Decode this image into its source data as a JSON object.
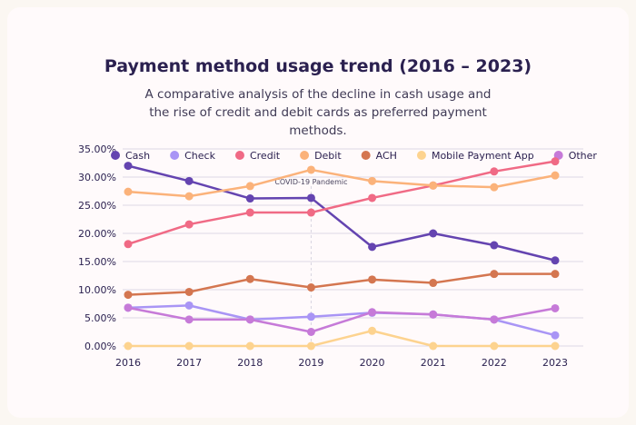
{
  "title": "Payment method usage trend (2016 – 2023)",
  "subtitle": "A comparative analysis of the decline in cash usage and the rise of credit and debit cards as preferred payment methods.",
  "chart_data": {
    "type": "line",
    "x": [
      "2016",
      "2017",
      "2018",
      "2019",
      "2020",
      "2021",
      "2022",
      "2023"
    ],
    "ylim": [
      0,
      35
    ],
    "yticks": [
      "0.00%",
      "5.00%",
      "10.00%",
      "15.00%",
      "20.00%",
      "25.00%",
      "30.00%",
      "35.00%"
    ],
    "grid": true,
    "legend": "top",
    "annotation": {
      "x": "2019",
      "label": "COVID-19 Pandemic"
    },
    "series": [
      {
        "name": "Cash",
        "color": "#6444b0",
        "values": [
          32.0,
          29.3,
          26.2,
          26.3,
          17.6,
          20.0,
          17.9,
          15.2
        ]
      },
      {
        "name": "Check",
        "color": "#a995f5",
        "values": [
          6.8,
          7.2,
          4.7,
          5.2,
          5.9,
          5.6,
          4.7,
          1.9
        ]
      },
      {
        "name": "Credit",
        "color": "#f06a85",
        "values": [
          18.1,
          21.6,
          23.7,
          23.7,
          26.3,
          28.5,
          31.0,
          32.8
        ]
      },
      {
        "name": "Debit",
        "color": "#fbb27a",
        "values": [
          27.4,
          26.6,
          28.4,
          31.3,
          29.3,
          28.5,
          28.2,
          30.3
        ]
      },
      {
        "name": "ACH",
        "color": "#d47650",
        "values": [
          9.1,
          9.6,
          11.9,
          10.4,
          11.8,
          11.2,
          12.8,
          12.8
        ]
      },
      {
        "name": "Mobile Payment App",
        "color": "#fdd38f",
        "values": [
          0,
          0,
          0,
          0,
          2.7,
          0,
          0,
          0
        ]
      },
      {
        "name": "Other",
        "color": "#c67ad8",
        "values": [
          6.8,
          4.7,
          4.7,
          2.5,
          6.0,
          5.6,
          4.7,
          6.7
        ]
      }
    ]
  }
}
